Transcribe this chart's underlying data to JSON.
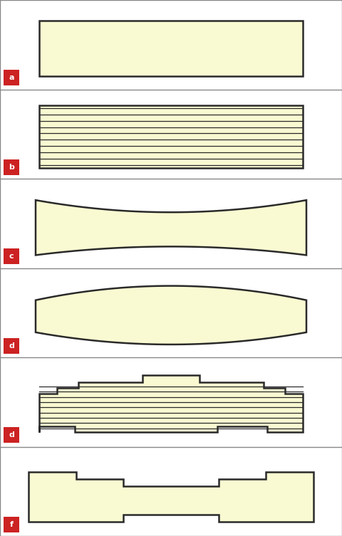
{
  "fill_color": "#FAFAD2",
  "edge_color": "#2a2a2a",
  "line_width": 1.8,
  "bg_color": "#ffffff",
  "panel_bg": "#ffffff",
  "divider_color": "#888888",
  "label_bg": "#cc2222",
  "label_text_color": "#ffffff",
  "labels": [
    "a",
    "b",
    "c",
    "d",
    "d",
    "f"
  ],
  "n_panels": 6,
  "stripe_color": "#2a2a2a",
  "stripe_lw": 0.9,
  "panel_border_color": "#888888",
  "panel_border_lw": 1.0
}
